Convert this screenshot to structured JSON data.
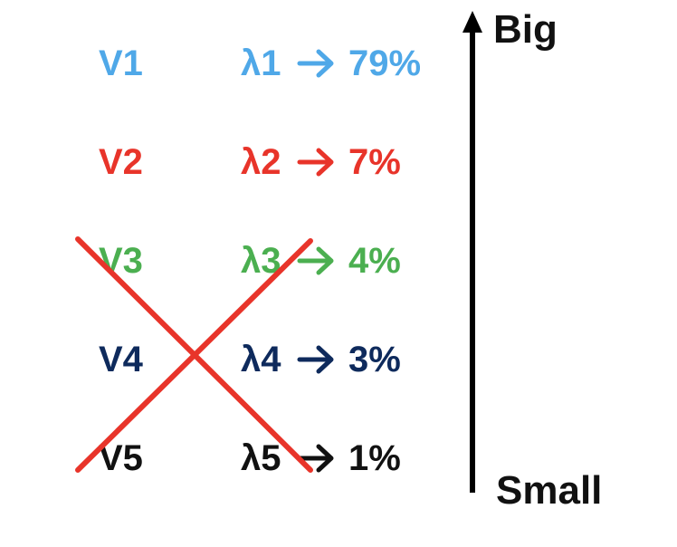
{
  "components": [
    {
      "vector": "V1",
      "eigenvalue": "λ1",
      "percent": "79%",
      "color": "#4FA8E8"
    },
    {
      "vector": "V2",
      "eigenvalue": "λ2",
      "percent": "7%",
      "color": "#E8342A"
    },
    {
      "vector": "V3",
      "eigenvalue": "λ3",
      "percent": "4%",
      "color": "#4BAF50"
    },
    {
      "vector": "V4",
      "eigenvalue": "λ4",
      "percent": "3%",
      "color": "#0E2A5C"
    },
    {
      "vector": "V5",
      "eigenvalue": "λ5",
      "percent": "1%",
      "color": "#111111"
    }
  ],
  "scale": {
    "top_label": "Big",
    "bottom_label": "Small",
    "arrow_color": "#000000"
  },
  "cross_out": {
    "color": "#E8342A",
    "covers_components": [
      "V3",
      "V4",
      "V5"
    ]
  },
  "icons": {
    "row_arrow": "right-arrow-icon",
    "scale_arrow": "up-arrow-icon",
    "cross": "cross-out-mark"
  }
}
